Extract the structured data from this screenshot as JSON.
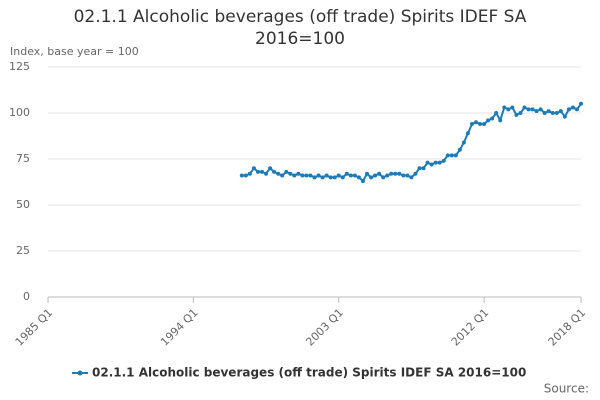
{
  "chart_data": {
    "type": "line",
    "title": "02.1.1 Alcoholic beverages (off trade) Spirits IDEF SA 2016=100",
    "y_label": "Index, base year = 100",
    "source": "Source:",
    "categories": [
      "1985 Q1",
      null,
      null,
      null,
      null,
      null,
      null,
      null,
      null,
      null,
      null,
      null,
      null,
      null,
      null,
      null,
      null,
      null,
      null,
      null,
      null,
      null,
      null,
      null,
      null,
      null,
      null,
      null,
      null,
      null,
      null,
      null,
      null,
      null,
      null,
      null,
      "1994 Q1",
      null,
      null,
      null,
      null,
      null,
      null,
      null,
      null,
      null,
      null,
      null,
      null,
      null,
      null,
      null,
      null,
      null,
      null,
      null,
      null,
      null,
      null,
      null,
      null,
      null,
      null,
      null,
      null,
      null,
      null,
      null,
      null,
      null,
      null,
      null,
      "2003 Q1",
      null,
      null,
      null,
      null,
      null,
      null,
      null,
      null,
      null,
      null,
      null,
      null,
      null,
      null,
      null,
      null,
      null,
      null,
      null,
      null,
      null,
      null,
      null,
      null,
      null,
      null,
      null,
      null,
      null,
      null,
      null,
      null,
      null,
      null,
      null,
      "2012 Q1",
      null,
      null,
      null,
      null,
      null,
      null,
      null,
      null,
      null,
      null,
      null,
      null,
      null,
      null,
      null,
      null,
      null,
      null,
      null,
      null,
      null,
      null,
      null,
      "2018 Q1"
    ],
    "series": [
      {
        "name": "02.1.1 Alcoholic beverages (off trade) Spirits IDEF SA 2016=100",
        "color": "#1f7bb6",
        "values": [
          null,
          null,
          null,
          null,
          null,
          null,
          null,
          null,
          null,
          null,
          null,
          null,
          null,
          null,
          null,
          null,
          null,
          null,
          null,
          null,
          null,
          null,
          null,
          null,
          null,
          null,
          null,
          null,
          null,
          null,
          null,
          null,
          null,
          null,
          null,
          null,
          null,
          null,
          null,
          null,
          null,
          null,
          null,
          null,
          null,
          null,
          null,
          null,
          66,
          66,
          67,
          70,
          68,
          68,
          67,
          70,
          68,
          67,
          66,
          68,
          67,
          66,
          67,
          66,
          66,
          66,
          65,
          66,
          65,
          66,
          65,
          65,
          66,
          65,
          67,
          66,
          66,
          65,
          63,
          67,
          65,
          66,
          67,
          65,
          66,
          67,
          67,
          67,
          66,
          66,
          65,
          67,
          70,
          70,
          73,
          72,
          73,
          73,
          74,
          77,
          77,
          77,
          80,
          84,
          89,
          94,
          95,
          94,
          94,
          96,
          97,
          100,
          96,
          103,
          102,
          103,
          99,
          100,
          103,
          102,
          102,
          101,
          102,
          100,
          101,
          100,
          100,
          101,
          98,
          102,
          103,
          102,
          105
        ]
      }
    ],
    "ylim": [
      0,
      125
    ],
    "yticks": [
      0,
      25,
      50,
      75,
      100,
      125
    ],
    "grid": true
  }
}
